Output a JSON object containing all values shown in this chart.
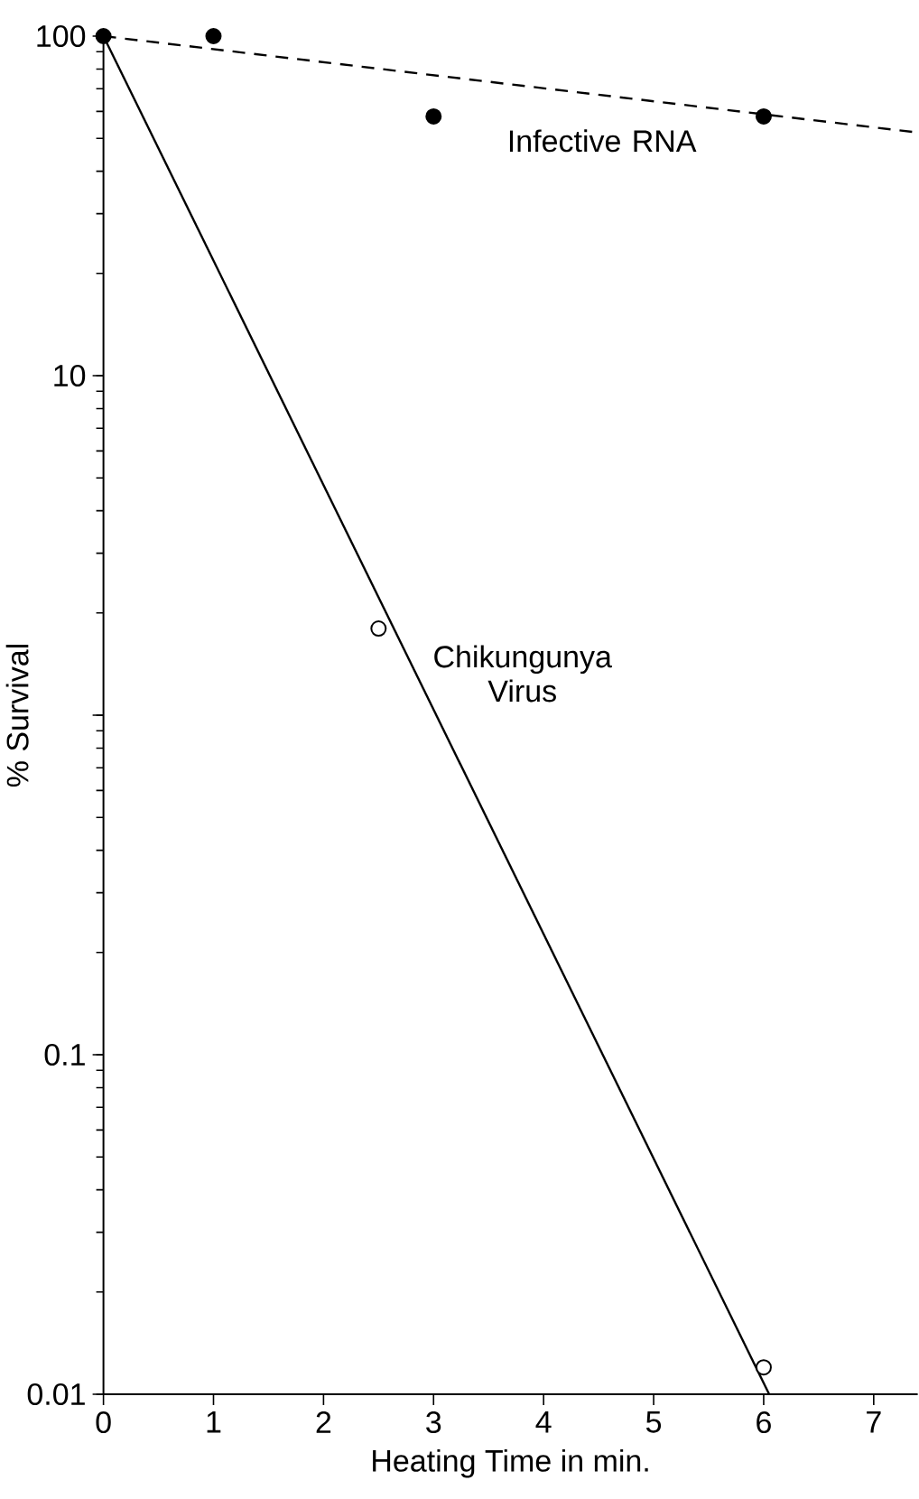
{
  "chart_data": {
    "type": "scatter",
    "xlabel": "Heating Time in min.",
    "ylabel": "% Survival",
    "log": "y",
    "xlim": [
      0,
      7.4
    ],
    "xticks": [
      0,
      1,
      2,
      3,
      4,
      5,
      6,
      7
    ],
    "ylim": [
      0.01,
      100
    ],
    "yticks": [
      0.01,
      0.1,
      {
        "value": 1,
        "label": null
      },
      10,
      100
    ],
    "grid": false,
    "legend": false,
    "marker": "circle",
    "series": [
      {
        "name": "Infective RNA",
        "color": "#000000",
        "x": [
          0,
          1,
          3,
          6
        ],
        "values": [
          100,
          100,
          58,
          58
        ]
      },
      {
        "type": "line",
        "color": "#000000",
        "line_style": "dashed",
        "marker": "none",
        "x": [
          0,
          7.4
        ],
        "values": [
          100,
          52
        ]
      },
      {
        "name": "Chikungunya Virus",
        "color": "#000000",
        "x": [
          2.5,
          6
        ],
        "values": [
          1.8,
          0.012
        ]
      },
      {
        "type": "line",
        "color": "#000000",
        "line_style": "solid",
        "marker": "none",
        "x": [
          0,
          6.05
        ],
        "values": [
          100,
          0.01
        ]
      }
    ]
  }
}
